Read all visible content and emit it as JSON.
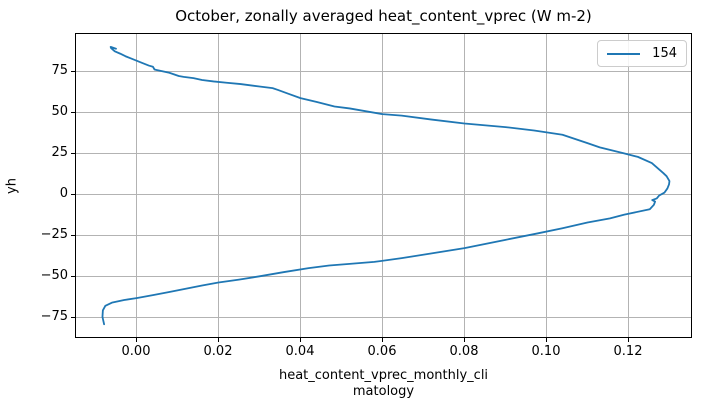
{
  "figure": {
    "title": "October, zonally averaged heat_content_vprec (W m-2)",
    "ylabel": "yh",
    "xlabel_line1": "heat_content_vprec_monthly_cli",
    "xlabel_line2": "matology",
    "legend": {
      "entries": [
        {
          "label": "154",
          "color": "#1f77b4"
        }
      ]
    },
    "colors": {
      "line": "#1f77b4",
      "grid": "#b3b3b3",
      "spine": "#000000",
      "text": "#000000",
      "legend_border": "#cccccc"
    }
  },
  "chart_data": {
    "type": "line",
    "title": "October, zonally averaged heat_content_vprec (W m-2)",
    "xlabel": "heat_content_vprec_monthly_climatology",
    "ylabel": "yh",
    "grid": true,
    "legend_position": "upper right",
    "xlim": [
      -0.015,
      0.1355
    ],
    "ylim": [
      -87.9,
      98.5
    ],
    "x_ticks": {
      "values": [
        0.0,
        0.02,
        0.04,
        0.06,
        0.08,
        0.1,
        0.12
      ],
      "labels": [
        "0.00",
        "0.02",
        "0.04",
        "0.06",
        "0.08",
        "0.10",
        "0.12"
      ]
    },
    "y_ticks": {
      "values": [
        75,
        50,
        25,
        0,
        -25,
        -50,
        -75
      ],
      "labels": [
        "75",
        "50",
        "25",
        "0",
        "−25",
        "−50",
        "−75"
      ]
    },
    "series": [
      {
        "name": "154",
        "color": "#1f77b4",
        "points": [
          [
            -0.0079,
            -79.5
          ],
          [
            -0.0083,
            -75.0
          ],
          [
            -0.0082,
            -71.0
          ],
          [
            -0.0076,
            -68.2
          ],
          [
            -0.006,
            -66.3
          ],
          [
            -0.003,
            -64.7
          ],
          [
            0.0,
            -63.5
          ],
          [
            0.004,
            -61.7
          ],
          [
            0.008,
            -59.8
          ],
          [
            0.012,
            -57.8
          ],
          [
            0.016,
            -55.8
          ],
          [
            0.02,
            -54.0
          ],
          [
            0.025,
            -52.2
          ],
          [
            0.03,
            -50.2
          ],
          [
            0.036,
            -47.6
          ],
          [
            0.042,
            -45.2
          ],
          [
            0.047,
            -43.6
          ],
          [
            0.052,
            -42.6
          ],
          [
            0.058,
            -41.4
          ],
          [
            0.0647,
            -39.1
          ],
          [
            0.072,
            -36.2
          ],
          [
            0.08,
            -33.0
          ],
          [
            0.09,
            -27.9
          ],
          [
            0.0978,
            -24.0
          ],
          [
            0.1039,
            -20.8
          ],
          [
            0.11,
            -17.3
          ],
          [
            0.1155,
            -14.8
          ],
          [
            0.119,
            -12.5
          ],
          [
            0.1252,
            -9.2
          ],
          [
            0.1262,
            -6.5
          ],
          [
            0.1265,
            -4.5
          ],
          [
            0.1258,
            -3.6
          ],
          [
            0.1269,
            -2.6
          ],
          [
            0.1275,
            -0.8
          ],
          [
            0.1288,
            1.0
          ],
          [
            0.1295,
            3.5
          ],
          [
            0.1299,
            6.0
          ],
          [
            0.13,
            8.0
          ],
          [
            0.1293,
            11.0
          ],
          [
            0.1285,
            12.9
          ],
          [
            0.1257,
            19.0
          ],
          [
            0.1223,
            22.8
          ],
          [
            0.1187,
            25.1
          ],
          [
            0.113,
            28.6
          ],
          [
            0.11,
            31.2
          ],
          [
            0.1039,
            36.3
          ],
          [
            0.097,
            38.9
          ],
          [
            0.09,
            41.0
          ],
          [
            0.08,
            43.2
          ],
          [
            0.072,
            45.6
          ],
          [
            0.0647,
            48.0
          ],
          [
            0.06,
            48.9
          ],
          [
            0.052,
            52.4
          ],
          [
            0.0483,
            53.6
          ],
          [
            0.044,
            56.3
          ],
          [
            0.04,
            58.7
          ],
          [
            0.037,
            61.4
          ],
          [
            0.0345,
            63.7
          ],
          [
            0.0332,
            64.8
          ],
          [
            0.03,
            65.8
          ],
          [
            0.0254,
            67.3
          ],
          [
            0.022,
            68.1
          ],
          [
            0.0188,
            68.9
          ],
          [
            0.016,
            69.8
          ],
          [
            0.0139,
            70.9
          ],
          [
            0.0115,
            71.7
          ],
          [
            0.0103,
            72.2
          ],
          [
            0.008,
            74.2
          ],
          [
            0.0066,
            75.0
          ],
          [
            0.0049,
            75.9
          ],
          [
            0.0044,
            76.2
          ],
          [
            0.004,
            77.9
          ],
          [
            0.003,
            78.6
          ],
          [
            0.001,
            80.6
          ],
          [
            0.0001,
            81.5
          ],
          [
            -0.0015,
            83.1
          ],
          [
            -0.0027,
            84.3
          ],
          [
            -0.004,
            85.9
          ],
          [
            -0.0053,
            87.3
          ],
          [
            -0.0062,
            89.3
          ],
          [
            -0.0063,
            90.0
          ],
          [
            -0.005,
            88.9
          ]
        ]
      }
    ]
  }
}
